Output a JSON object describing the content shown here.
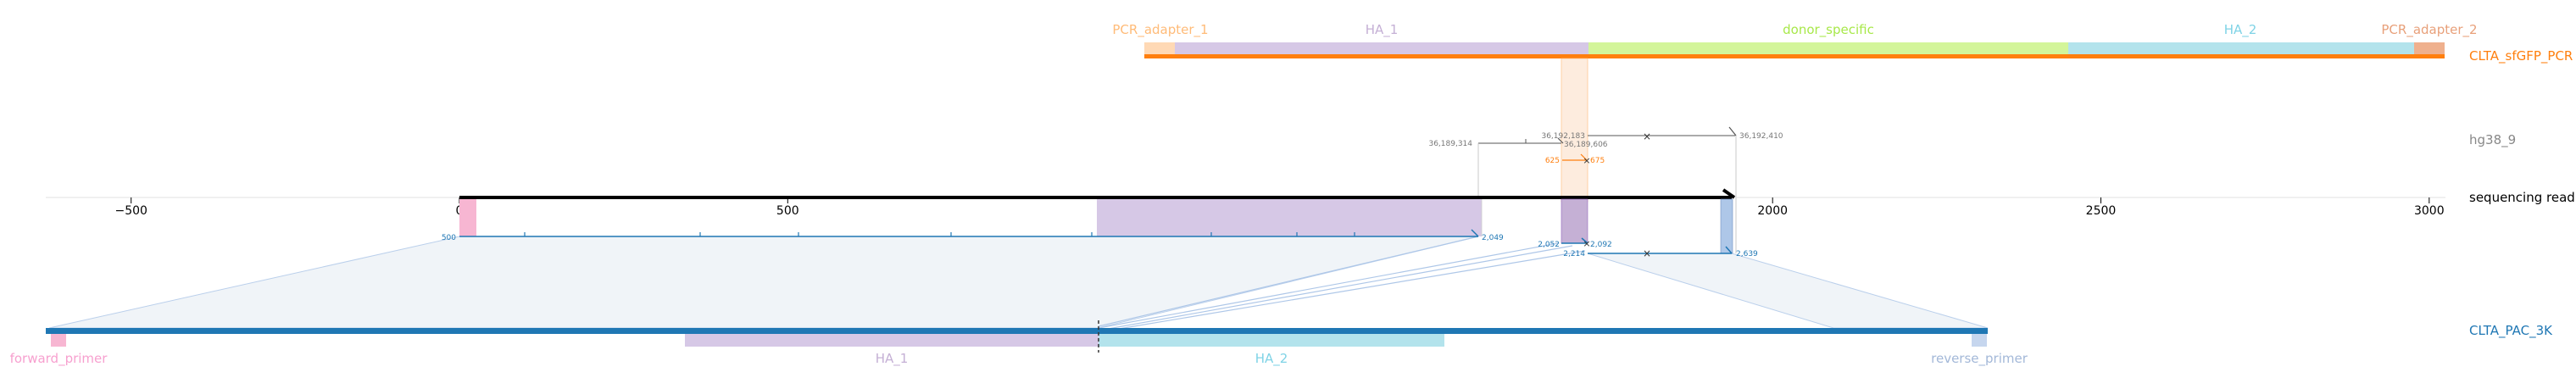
{
  "colors": {
    "pink": "#f7b6d2",
    "pink_text": "#e377c2",
    "peach": "#ffbb78",
    "lavender": "#c5b0d5",
    "lavender_text": "#9467bd",
    "lime": "#dbdb8d",
    "lime_bright": "#c9f77a",
    "lime_text": "#98df3a",
    "cyan": "#9edae5",
    "cyan_text": "#5fc8e0",
    "salmon": "#e8a07a",
    "salmon_text": "#e07b54",
    "orange": "#ff7f0e",
    "blue": "#1f77b4",
    "steelblue": "#aec7e8",
    "grey": "#777777"
  },
  "axis": {
    "min": -500,
    "max": 3000,
    "ticks": [
      "-500",
      "0",
      "500",
      "1000",
      "1500",
      "2000",
      "2500",
      "3000"
    ]
  },
  "rows": {
    "pcr": "CLTA_sfGFP_PCR",
    "hg38": "hg38_9",
    "read": "sequencing read",
    "pac": "CLTA_PAC_3K"
  },
  "top_features": [
    {
      "label": "PCR_adapter_1",
      "color": "peach",
      "text_color": "#ffbb78"
    },
    {
      "label": "HA_1",
      "color": "lavender",
      "text_color": "#c5b0d5"
    },
    {
      "label": "donor_specific",
      "color": "lime_bright",
      "text_color": "#a8e84a"
    },
    {
      "label": "HA_2",
      "color": "cyan",
      "text_color": "#7fd3e6"
    },
    {
      "label": "PCR_adapter_2",
      "color": "salmon",
      "text_color": "#e8a07a"
    }
  ],
  "bottom_features": [
    {
      "label": "forward_primer",
      "text_color": "#f7a0cf"
    },
    {
      "label": "HA_1",
      "text_color": "#c5b0d5"
    },
    {
      "label": "HA_2",
      "text_color": "#7fd3e6"
    },
    {
      "label": "reverse_primer",
      "text_color": "#a3b8d8"
    }
  ],
  "small_labels": {
    "hg_left_start": "36,189,314",
    "hg_left_end": "36,189,606",
    "hg_right_start": "36,192,183",
    "hg_right_end": "36,192,410",
    "pcr_a": "625",
    "pcr_b": "675",
    "read_start": "500",
    "read_a": "2,049",
    "read_b": "2,052",
    "read_c": "2,092",
    "read_d": "2,214",
    "read_e": "2,639"
  }
}
